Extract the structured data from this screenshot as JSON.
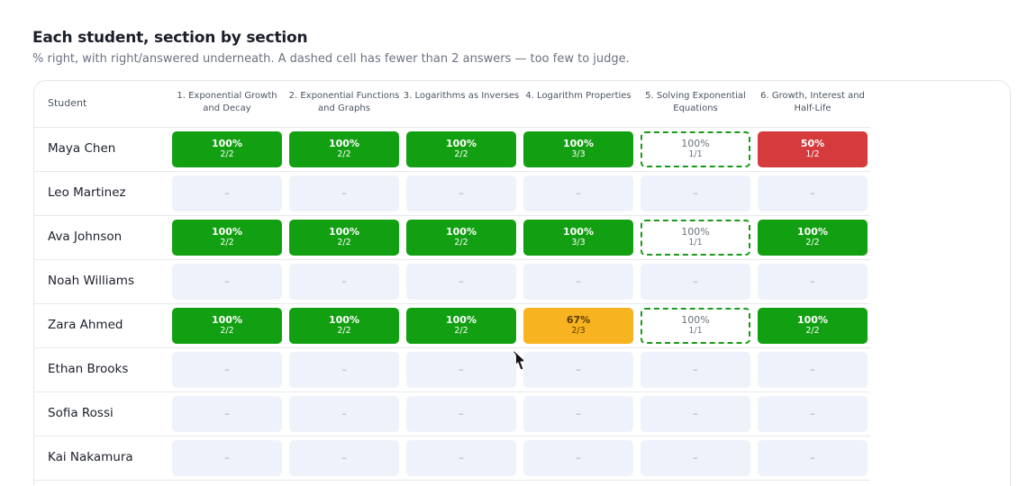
{
  "title": "Each student, section by section",
  "subtitle": "% right, with right/answered underneath. A dashed cell has fewer than 2 answers — too few to judge.",
  "table": {
    "student_header": "Student",
    "columns": [
      "1. Exponential Growth and Decay",
      "2. Exponential Functions and Graphs",
      "3. Logarithms as Inverses",
      "4. Logarithm Properties",
      "5. Solving Exponential Equations",
      "6. Growth, Interest and Half-Life"
    ],
    "rows": [
      {
        "name": "Maya Chen",
        "cells": [
          {
            "percent": "100%",
            "fraction": "2/2",
            "status": "high"
          },
          {
            "percent": "100%",
            "fraction": "2/2",
            "status": "high"
          },
          {
            "percent": "100%",
            "fraction": "2/2",
            "status": "high"
          },
          {
            "percent": "100%",
            "fraction": "3/3",
            "status": "high"
          },
          {
            "percent": "100%",
            "fraction": "1/1",
            "status": "few"
          },
          {
            "percent": "50%",
            "fraction": "1/2",
            "status": "low"
          }
        ]
      },
      {
        "name": "Leo Martinez",
        "cells": [
          {
            "label": "–",
            "status": "empty"
          },
          {
            "label": "–",
            "status": "empty"
          },
          {
            "label": "–",
            "status": "empty"
          },
          {
            "label": "–",
            "status": "empty"
          },
          {
            "label": "–",
            "status": "empty"
          },
          {
            "label": "–",
            "status": "empty"
          }
        ]
      },
      {
        "name": "Ava Johnson",
        "cells": [
          {
            "percent": "100%",
            "fraction": "2/2",
            "status": "high"
          },
          {
            "percent": "100%",
            "fraction": "2/2",
            "status": "high"
          },
          {
            "percent": "100%",
            "fraction": "2/2",
            "status": "high"
          },
          {
            "percent": "100%",
            "fraction": "3/3",
            "status": "high"
          },
          {
            "percent": "100%",
            "fraction": "1/1",
            "status": "few"
          },
          {
            "percent": "100%",
            "fraction": "2/2",
            "status": "high"
          }
        ]
      },
      {
        "name": "Noah Williams",
        "cells": [
          {
            "label": "–",
            "status": "empty"
          },
          {
            "label": "–",
            "status": "empty"
          },
          {
            "label": "–",
            "status": "empty"
          },
          {
            "label": "–",
            "status": "empty"
          },
          {
            "label": "–",
            "status": "empty"
          },
          {
            "label": "–",
            "status": "empty"
          }
        ]
      },
      {
        "name": "Zara Ahmed",
        "cells": [
          {
            "percent": "100%",
            "fraction": "2/2",
            "status": "high"
          },
          {
            "percent": "100%",
            "fraction": "2/2",
            "status": "high"
          },
          {
            "percent": "100%",
            "fraction": "2/2",
            "status": "high"
          },
          {
            "percent": "67%",
            "fraction": "2/3",
            "status": "mid"
          },
          {
            "percent": "100%",
            "fraction": "1/1",
            "status": "few"
          },
          {
            "percent": "100%",
            "fraction": "2/2",
            "status": "high"
          }
        ]
      },
      {
        "name": "Ethan Brooks",
        "cells": [
          {
            "label": "–",
            "status": "empty"
          },
          {
            "label": "–",
            "status": "empty"
          },
          {
            "label": "–",
            "status": "empty"
          },
          {
            "label": "–",
            "status": "empty"
          },
          {
            "label": "–",
            "status": "empty"
          },
          {
            "label": "–",
            "status": "empty"
          }
        ]
      },
      {
        "name": "Sofia Rossi",
        "cells": [
          {
            "label": "–",
            "status": "empty"
          },
          {
            "label": "–",
            "status": "empty"
          },
          {
            "label": "–",
            "status": "empty"
          },
          {
            "label": "–",
            "status": "empty"
          },
          {
            "label": "–",
            "status": "empty"
          },
          {
            "label": "–",
            "status": "empty"
          }
        ]
      },
      {
        "name": "Kai Nakamura",
        "cells": [
          {
            "label": "–",
            "status": "empty"
          },
          {
            "label": "–",
            "status": "empty"
          },
          {
            "label": "–",
            "status": "empty"
          },
          {
            "label": "–",
            "status": "empty"
          },
          {
            "label": "–",
            "status": "empty"
          },
          {
            "label": "–",
            "status": "empty"
          }
        ]
      }
    ]
  }
}
